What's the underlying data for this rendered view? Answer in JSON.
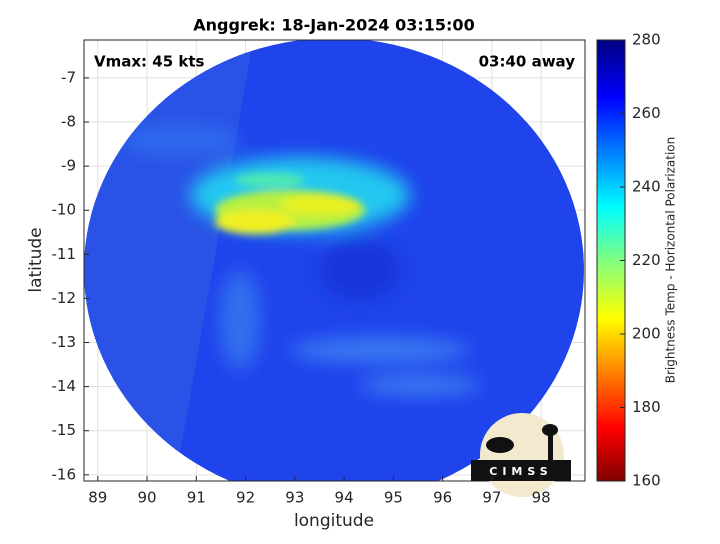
{
  "chart_data": {
    "type": "image",
    "title": "Anggrek: 18-Jan-2024 03:15:00",
    "annotations": [
      "Vmax: 45 kts",
      "03:40 away"
    ],
    "xlabel": "longitude",
    "ylabel": "latitude",
    "xlim": [
      88.72,
      98.89
    ],
    "ylim": [
      -16.14,
      -6.14
    ],
    "xticks": [
      89,
      90,
      91,
      92,
      93,
      94,
      95,
      96,
      97,
      98
    ],
    "yticks": [
      -16,
      -15,
      -14,
      -13,
      -12,
      -11,
      -10,
      -9,
      -8,
      -7
    ],
    "grid": true,
    "colorbar": {
      "label": "Brightness Temp - Horizontal Polarization",
      "lim": [
        160,
        280
      ],
      "ticks": [
        160,
        180,
        200,
        220,
        240,
        260,
        280
      ]
    },
    "logo": "CIMSS"
  }
}
